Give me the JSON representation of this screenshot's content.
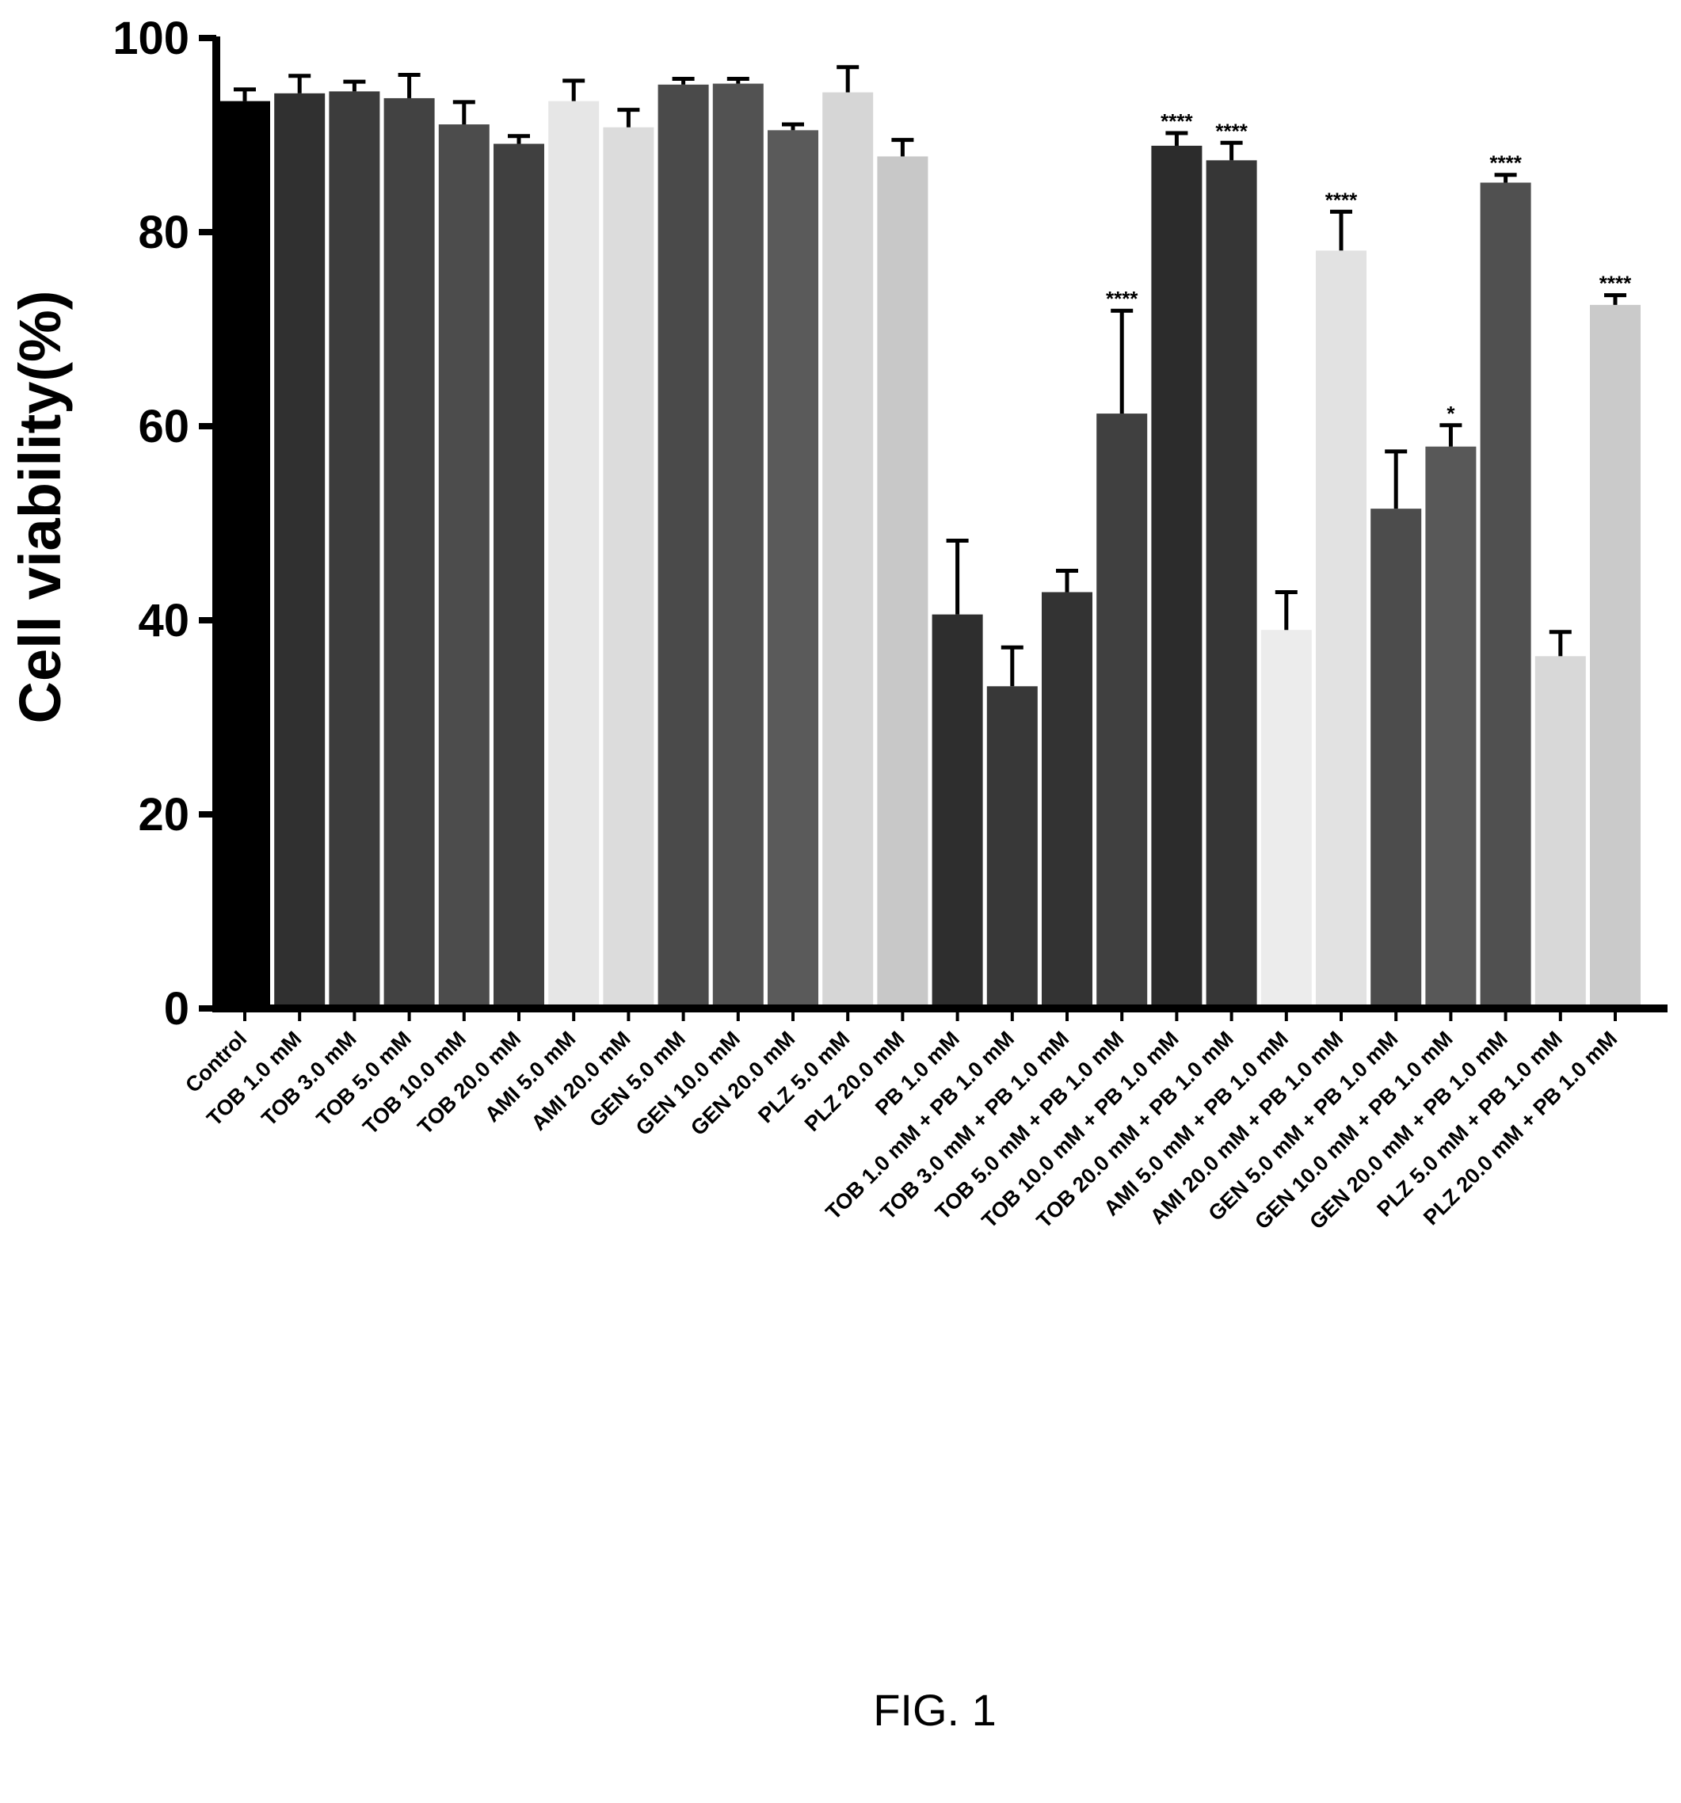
{
  "figure_caption": "FIG. 1",
  "chart_data": {
    "type": "bar",
    "title": "",
    "xlabel": "",
    "ylabel": "Cell viability(%)",
    "ylim": [
      0,
      100
    ],
    "yticks": [
      0,
      20,
      40,
      60,
      80,
      100
    ],
    "grid": false,
    "categories": [
      "Control",
      "TOB 1.0 mM",
      "TOB 3.0 mM",
      "TOB 5.0 mM",
      "TOB 10.0 mM",
      "TOB 20.0 mM",
      "AMI 5.0 mM",
      "AMI 20.0 mM",
      "GEN 5.0 mM",
      "GEN 10.0 mM",
      "GEN 20.0 mM",
      "PLZ 5.0 mM",
      "PLZ 20.0 mM",
      "PB 1.0 mM",
      "TOB 1.0 mM + PB 1.0 mM",
      "TOB 3.0 mM + PB 1.0 mM",
      "TOB 5.0 mM + PB 1.0 mM",
      "TOB 10.0 mM + PB 1.0 mM",
      "TOB 20.0 mM + PB 1.0 mM",
      "AMI 5.0 mM + PB 1.0 mM",
      "AMI 20.0 mM + PB 1.0 mM",
      "GEN 5.0 mM + PB 1.0 mM",
      "GEN 10.0 mM + PB 1.0 mM",
      "GEN 20.0 mM + PB 1.0 mM",
      "PLZ 5.0 mM + PB 1.0 mM",
      "PLZ 20.0 mM + PB 1.0 mM"
    ],
    "values": [
      93.5,
      94.3,
      94.5,
      93.8,
      91.1,
      89.1,
      93.5,
      90.8,
      95.2,
      95.3,
      90.5,
      94.4,
      87.8,
      40.6,
      33.2,
      42.9,
      61.3,
      88.9,
      87.4,
      39.0,
      78.1,
      51.5,
      57.9,
      85.1,
      36.3,
      72.5
    ],
    "errors": [
      1.2,
      1.8,
      1.0,
      2.4,
      2.3,
      0.8,
      2.1,
      1.8,
      0.6,
      0.5,
      0.6,
      2.6,
      1.7,
      7.6,
      4.0,
      2.2,
      10.6,
      1.3,
      1.8,
      3.9,
      4.0,
      5.9,
      2.2,
      0.8,
      2.5,
      1.0
    ],
    "significance": [
      "",
      "",
      "",
      "",
      "",
      "",
      "",
      "",
      "",
      "",
      "",
      "",
      "",
      "",
      "",
      "",
      "****",
      "****",
      "****",
      "",
      "****",
      "",
      "*",
      "****",
      "",
      "****"
    ],
    "bar_colors": [
      "#000000",
      "#303030",
      "#3c3c3c",
      "#424242",
      "#4c4c4c",
      "#404040",
      "#e6e6e6",
      "#dcdcdc",
      "#4a4a4a",
      "#525252",
      "#5a5a5a",
      "#d6d6d6",
      "#c8c8c8",
      "#2e2e2e",
      "#383838",
      "#333333",
      "#404040",
      "#2c2c2c",
      "#363636",
      "#ececec",
      "#e2e2e2",
      "#4c4c4c",
      "#585858",
      "#505050",
      "#d8d8d8",
      "#cacaca"
    ]
  }
}
